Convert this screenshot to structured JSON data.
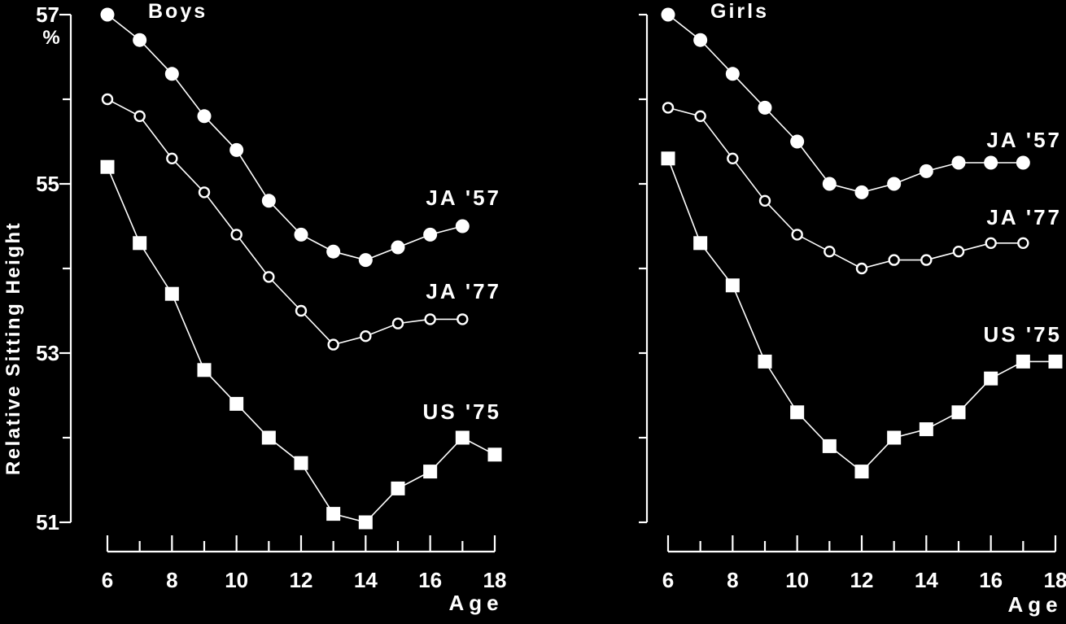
{
  "figure": {
    "ylabel": "Relative Sitting Height",
    "yunit": "%",
    "xlabel": "Age"
  },
  "chart_data": [
    {
      "type": "line",
      "title": "Boys",
      "xlabel": "Age",
      "ylabel": "Relative Sitting Height",
      "xlim": [
        6,
        18
      ],
      "ylim": [
        51,
        57
      ],
      "x_ticks": [
        6,
        8,
        10,
        12,
        14,
        16,
        18
      ],
      "y_tick_labels": [
        {
          "value": 51,
          "label": "51"
        },
        {
          "value": 53,
          "label": "53"
        },
        {
          "value": 55,
          "label": "55"
        },
        {
          "value": 57,
          "label": "57"
        }
      ],
      "y_minor_ticks": [
        52,
        54,
        56
      ],
      "series": [
        {
          "name": "JA '57",
          "marker": "filled-circle",
          "x": [
            6,
            7,
            8,
            9,
            10,
            11,
            12,
            13,
            14,
            15,
            16,
            17
          ],
          "values": [
            57.0,
            56.7,
            56.3,
            55.8,
            55.4,
            54.8,
            54.4,
            54.2,
            54.1,
            54.25,
            54.4,
            54.5
          ]
        },
        {
          "name": "JA '77",
          "marker": "open-circle",
          "x": [
            6,
            7,
            8,
            9,
            10,
            11,
            12,
            13,
            14,
            15,
            16,
            17
          ],
          "values": [
            56.0,
            55.8,
            55.3,
            54.9,
            54.4,
            53.9,
            53.5,
            53.1,
            53.2,
            53.35,
            53.4,
            53.4
          ]
        },
        {
          "name": "US '75",
          "marker": "filled-square",
          "x": [
            6,
            7,
            8,
            9,
            10,
            11,
            12,
            13,
            14,
            15,
            16,
            17,
            18
          ],
          "values": [
            55.2,
            54.3,
            53.7,
            52.8,
            52.4,
            52.0,
            51.7,
            51.1,
            51.0,
            51.4,
            51.6,
            52.0,
            51.8
          ]
        }
      ]
    },
    {
      "type": "line",
      "title": "Girls",
      "xlabel": "Age",
      "ylabel": "Relative Sitting Height",
      "xlim": [
        6,
        18
      ],
      "ylim": [
        51,
        57
      ],
      "x_ticks": [
        6,
        8,
        10,
        12,
        14,
        16,
        18
      ],
      "y_tick_labels": [],
      "y_minor_ticks": [
        51,
        52,
        53,
        54,
        55,
        56,
        57
      ],
      "series": [
        {
          "name": "JA '57",
          "marker": "filled-circle",
          "x": [
            6,
            7,
            8,
            9,
            10,
            11,
            12,
            13,
            14,
            15,
            16,
            17
          ],
          "values": [
            57.0,
            56.7,
            56.3,
            55.9,
            55.5,
            55.0,
            54.9,
            55.0,
            55.15,
            55.25,
            55.25,
            55.25
          ]
        },
        {
          "name": "JA '77",
          "marker": "open-circle",
          "x": [
            6,
            7,
            8,
            9,
            10,
            11,
            12,
            13,
            14,
            15,
            16,
            17
          ],
          "values": [
            55.9,
            55.8,
            55.3,
            54.8,
            54.4,
            54.2,
            54.0,
            54.1,
            54.1,
            54.2,
            54.3,
            54.3
          ]
        },
        {
          "name": "US '75",
          "marker": "filled-square",
          "x": [
            6,
            7,
            8,
            9,
            10,
            11,
            12,
            13,
            14,
            15,
            16,
            17,
            18
          ],
          "values": [
            55.3,
            54.3,
            53.8,
            52.9,
            52.3,
            51.9,
            51.6,
            52.0,
            52.1,
            52.3,
            52.7,
            52.9,
            52.9
          ]
        }
      ]
    }
  ]
}
